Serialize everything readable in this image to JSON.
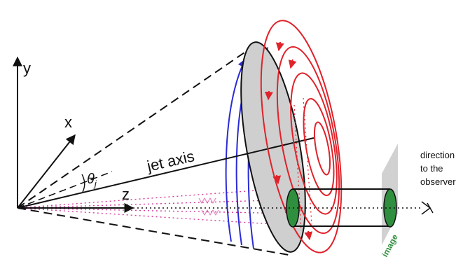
{
  "figure": {
    "axes": {
      "y_label": "y",
      "x_label": "x",
      "z_label": "z"
    },
    "jet_axis_label": "jet axis",
    "angle_label": "θ",
    "angle_subscript": "j",
    "observer_label_lines": [
      "direction",
      "to the",
      "observer"
    ],
    "image_label": "image",
    "colors": {
      "outer_field_loops": "#2b2bd6",
      "inner_field_loops": "#e0222a",
      "cylinder_caps": "#2f8f3e",
      "image_screen": "#c9c9c9",
      "dotted_lines": "#d63a9b",
      "disk_fill": "#cfcfcf",
      "axis_lines": "#111111"
    }
  }
}
